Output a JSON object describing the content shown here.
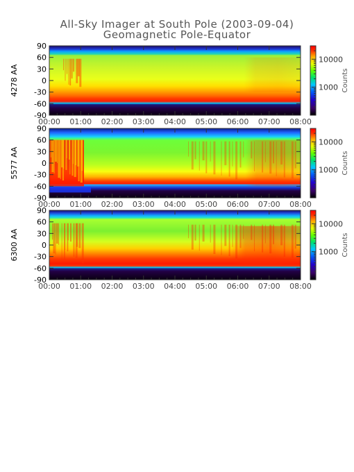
{
  "title": "All-Sky Imager at South Pole (2003-09-04)",
  "subtitle": "Geomagnetic Pole-Equator",
  "chart_data": [
    {
      "type": "heatmap",
      "ylabel": "4278 AA",
      "y_ticks": [
        90,
        60,
        30,
        0,
        -30,
        -60,
        -90
      ],
      "ylim": [
        -90,
        90
      ],
      "x_ticks": [
        "00:00",
        "01:00",
        "02:00",
        "03:00",
        "04:00",
        "05:00",
        "06:00",
        "07:00",
        "08:00"
      ],
      "xlim": [
        "00:00",
        "08:00"
      ],
      "colorbar": {
        "label": "Counts",
        "scale": "log",
        "ticks": [
          1000,
          10000
        ]
      },
      "dark_cap_above_latitude": 60,
      "dark_cap_below_latitude": -60
    },
    {
      "type": "heatmap",
      "ylabel": "5577 AA",
      "y_ticks": [
        90,
        60,
        30,
        0,
        -30,
        -60,
        -90
      ],
      "ylim": [
        -90,
        90
      ],
      "x_ticks": [
        "00:00",
        "01:00",
        "02:00",
        "03:00",
        "04:00",
        "05:00",
        "06:00",
        "07:00",
        "08:00"
      ],
      "xlim": [
        "00:00",
        "08:00"
      ],
      "colorbar": {
        "label": "Counts",
        "scale": "log",
        "ticks": [
          1000,
          10000
        ]
      },
      "dark_cap_above_latitude": 60,
      "dark_cap_below_latitude": -60
    },
    {
      "type": "heatmap",
      "ylabel": "6300 AA",
      "y_ticks": [
        90,
        60,
        30,
        0,
        -30,
        -60,
        -90
      ],
      "ylim": [
        -90,
        90
      ],
      "x_ticks": [
        "00:00",
        "01:00",
        "02:00",
        "03:00",
        "04:00",
        "05:00",
        "06:00",
        "07:00",
        "08:00"
      ],
      "xlim": [
        "00:00",
        "08:00"
      ],
      "colorbar": {
        "label": "Counts",
        "scale": "log",
        "ticks": [
          1000,
          10000
        ]
      },
      "dark_cap_above_latitude": 60,
      "dark_cap_below_latitude": -60
    }
  ]
}
